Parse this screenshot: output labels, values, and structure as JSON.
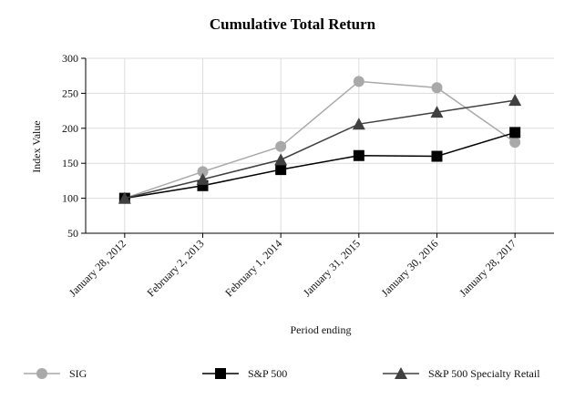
{
  "chart_data": {
    "type": "line",
    "title": "Cumulative Total Return",
    "xlabel": "Period ending",
    "ylabel": "Index Value",
    "ylim": [
      50,
      300
    ],
    "yticks": [
      50,
      100,
      150,
      200,
      250,
      300
    ],
    "grid": true,
    "legend_position": "bottom",
    "categories": [
      "January 28, 2012",
      "February 2, 2013",
      "February 1, 2014",
      "January 31, 2015",
      "January 30, 2016",
      "January 28, 2017"
    ],
    "series": [
      {
        "name": "SIG",
        "marker": "circle",
        "color": "#a9a9a9",
        "values": [
          100,
          138,
          174,
          267,
          258,
          180
        ]
      },
      {
        "name": "S&P 500",
        "marker": "square",
        "color": "#000000",
        "values": [
          100,
          118,
          141,
          161,
          160,
          194
        ]
      },
      {
        "name": "S&P 500 Specialty Retail",
        "marker": "triangle",
        "color": "#404040",
        "values": [
          100,
          127,
          155,
          206,
          223,
          240
        ]
      }
    ]
  }
}
